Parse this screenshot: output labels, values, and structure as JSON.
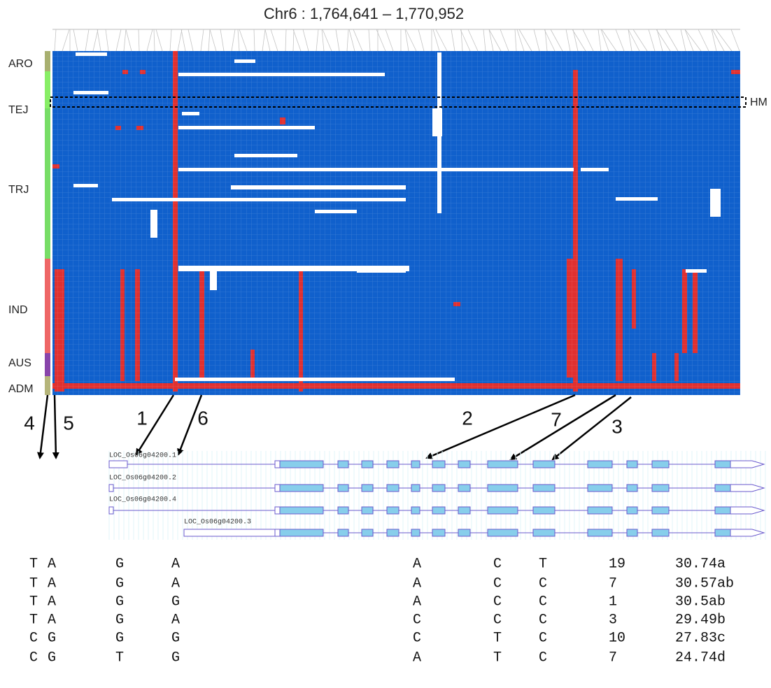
{
  "title": "Chr6 : 1,764,641 – 1,770,952",
  "groups": [
    "ARO",
    "TEJ",
    "TRJ",
    "IND",
    "AUS",
    "ADM"
  ],
  "hm_label": "HM",
  "arrow_labels": [
    "4",
    "5",
    "1",
    "6",
    "2",
    "7",
    "3"
  ],
  "transcripts": [
    "LOC_Os06g04200.1",
    "LOC_Os06g04200.2",
    "LOC_Os06g04200.4",
    "LOC_Os06g04200.3"
  ],
  "table": {
    "rows": [
      [
        "T",
        "A",
        "G",
        "A",
        "A",
        "C",
        "T",
        "19",
        "30.74a"
      ],
      [
        "T",
        "A",
        "G",
        "A",
        "A",
        "C",
        "C",
        "7",
        "30.57ab"
      ],
      [
        "T",
        "A",
        "G",
        "G",
        "A",
        "C",
        "C",
        "1",
        "30.5ab"
      ],
      [
        "T",
        "A",
        "G",
        "A",
        "C",
        "C",
        "C",
        "3",
        "29.49b"
      ],
      [
        "C",
        "G",
        "G",
        "G",
        "C",
        "T",
        "C",
        "10",
        "27.83c"
      ],
      [
        "C",
        "G",
        "T",
        "G",
        "A",
        "T",
        "C",
        "7",
        "24.74d"
      ]
    ]
  }
}
